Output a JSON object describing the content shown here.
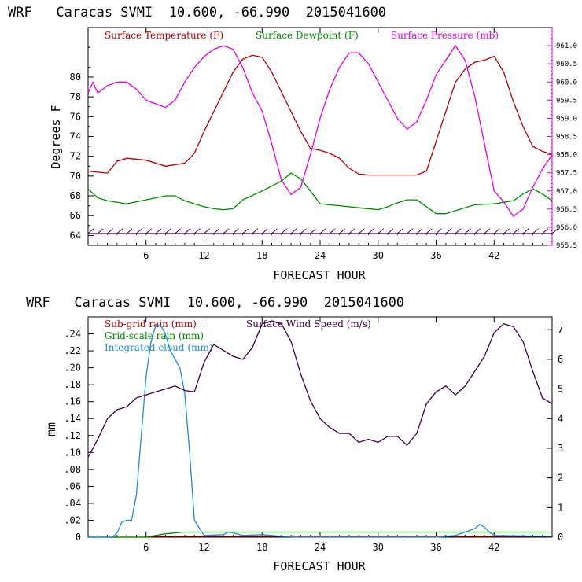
{
  "chart_data": [
    {
      "type": "line",
      "title": "WRF   Caracas SVMI  10.600, -66.990  2015041600",
      "xlabel": "FORECAST HOUR",
      "ylabel": "Degrees F",
      "xlim": [
        0,
        48
      ],
      "ylim": [
        63,
        85
      ],
      "y2lim": [
        955.5,
        961.5
      ],
      "xticks": [
        6,
        12,
        18,
        24,
        30,
        36,
        42
      ],
      "yticks": [
        64,
        66,
        68,
        70,
        72,
        74,
        76,
        78,
        80
      ],
      "y2ticks": [
        "955.5",
        "956.0",
        "956.5",
        "957.0",
        "957.5",
        "958.0",
        "958.5",
        "959.0",
        "959.5",
        "960.0",
        "960.5",
        "961.0"
      ],
      "legend": [
        "Surface Temperature (F)",
        "Surface Dewpoint (F)",
        "Surface Pressure (mb)"
      ],
      "colors": {
        "temperature": "#b40000",
        "dewpoint": "#008c00",
        "pressure": "#e600e6",
        "wind_barbs": "#3c0046",
        "axis": "#000000",
        "right_axis": "#e600e6"
      },
      "series": [
        {
          "name": "Surface Temperature (F)",
          "axis": "left",
          "x": [
            0,
            2,
            3,
            4,
            6,
            8,
            10,
            11,
            12,
            13,
            14,
            15,
            16,
            17,
            18,
            19,
            20,
            21,
            22,
            23,
            24,
            25,
            26,
            27,
            28,
            29,
            30,
            32,
            34,
            35,
            36,
            37,
            38,
            39,
            40,
            41,
            42,
            43,
            44,
            45,
            46,
            47,
            48
          ],
          "y": [
            70.5,
            70.3,
            71.5,
            71.8,
            71.6,
            71,
            71.3,
            72.3,
            74.5,
            76.5,
            78.5,
            80.5,
            81.8,
            82.2,
            82,
            80.5,
            78.5,
            76.5,
            74.5,
            72.8,
            72.6,
            72.3,
            71.8,
            70.8,
            70.2,
            70.1,
            70.1,
            70.1,
            70.1,
            70.5,
            73.5,
            76.5,
            79.5,
            80.8,
            81.5,
            81.7,
            82.1,
            80.5,
            77.5,
            75,
            73,
            72.5,
            72.2
          ]
        },
        {
          "name": "Surface Dewpoint (F)",
          "axis": "left",
          "x": [
            0,
            1,
            2,
            4,
            6,
            8,
            9,
            10,
            11,
            12,
            13,
            14,
            15,
            16,
            18,
            20,
            21,
            22,
            23,
            24,
            26,
            28,
            30,
            31,
            32,
            33,
            34,
            36,
            37,
            38,
            40,
            42,
            44,
            45,
            46,
            47,
            48
          ],
          "y": [
            68.7,
            67.8,
            67.5,
            67.2,
            67.6,
            68,
            68,
            67.5,
            67.2,
            66.9,
            66.7,
            66.6,
            66.7,
            67.6,
            68.5,
            69.5,
            70.3,
            69.7,
            68.5,
            67.2,
            67,
            66.8,
            66.6,
            66.9,
            67.3,
            67.6,
            67.6,
            66.2,
            66.2,
            66.5,
            67.1,
            67.2,
            67.5,
            68.2,
            68.7,
            68.2,
            67.5
          ]
        },
        {
          "name": "Surface Pressure (mb)",
          "axis": "right",
          "x": [
            0,
            0.5,
            1,
            2,
            3,
            4,
            5,
            6,
            7,
            8,
            9,
            10,
            11,
            12,
            13,
            14,
            15,
            16,
            17,
            18,
            19,
            20,
            21,
            22,
            23,
            24,
            25,
            26,
            27,
            28,
            29,
            30,
            31,
            32,
            33,
            34,
            35,
            36,
            37,
            38,
            39,
            40,
            41,
            42,
            43,
            44,
            45,
            46,
            47,
            48
          ],
          "y": [
            959.7,
            960.0,
            959.7,
            959.9,
            960.0,
            960.0,
            959.8,
            959.5,
            959.4,
            959.3,
            959.5,
            960.0,
            960.4,
            960.7,
            960.9,
            961.0,
            960.9,
            960.4,
            959.7,
            959.2,
            958.3,
            957.3,
            956.9,
            957.1,
            958.0,
            959.0,
            959.8,
            960.4,
            960.8,
            960.8,
            960.5,
            960.0,
            959.5,
            959.0,
            958.7,
            958.9,
            959.5,
            960.2,
            960.6,
            961.0,
            960.6,
            959.6,
            958.3,
            957.0,
            956.7,
            956.3,
            956.5,
            957.1,
            957.6,
            958.0
          ]
        },
        {
          "name": "Wind barbs",
          "axis": "left",
          "level": 64.2
        }
      ]
    },
    {
      "type": "line",
      "title": "WRF   Caracas SVMI  10.600, -66.990  2015041600",
      "xlabel": "FORECAST HOUR",
      "ylabel": "mm",
      "xlim": [
        0,
        48
      ],
      "ylim": [
        0,
        0.26
      ],
      "y2lim": [
        0,
        7.43
      ],
      "xticks": [
        6,
        12,
        18,
        24,
        30,
        36,
        42
      ],
      "yticks": [
        ".24",
        ".22",
        ".20",
        ".18",
        ".16",
        ".14",
        ".12",
        ".10",
        ".08",
        ".06",
        ".04",
        ".02",
        "0"
      ],
      "y2ticks": [
        "0",
        "1",
        "2",
        "3",
        "4",
        "5",
        "6",
        "7"
      ],
      "legend": [
        "Sub-grid rain (mm)",
        "Grid-scale rain (mm)",
        "Integrated cloud (mm)",
        "Surface Wind Speed (m/s)"
      ],
      "colors": {
        "subgrid": "#b40000",
        "gridscale": "#008c00",
        "cloud": "#1e8cdc",
        "wind": "#3c0046"
      },
      "series": [
        {
          "name": "Sub-grid rain (mm)",
          "axis": "left",
          "x": [
            0,
            6,
            7,
            48
          ],
          "y": [
            0,
            0,
            0.001,
            0.001
          ]
        },
        {
          "name": "Grid-scale rain (mm)",
          "axis": "left",
          "x": [
            0,
            6,
            8,
            10,
            48
          ],
          "y": [
            0,
            0,
            0.004,
            0.006,
            0.006
          ]
        },
        {
          "name": "Integrated cloud (mm)",
          "axis": "left",
          "x": [
            0,
            2.5,
            3,
            3.5,
            4,
            4.5,
            5,
            5.5,
            6,
            6.5,
            7,
            7.5,
            8,
            8.5,
            9,
            9.5,
            10,
            10.5,
            11,
            12,
            14,
            14.5,
            15,
            16,
            18,
            20,
            22,
            36,
            38,
            40,
            40.5,
            41,
            41.5,
            42,
            48
          ],
          "y": [
            0,
            0,
            0.005,
            0.018,
            0.02,
            0.02,
            0.05,
            0.12,
            0.19,
            0.23,
            0.25,
            0.25,
            0.24,
            0.22,
            0.21,
            0.2,
            0.17,
            0.1,
            0.02,
            0.002,
            0.003,
            0.006,
            0.005,
            0.002,
            0.003,
            0.001,
            0,
            0,
            0.002,
            0.01,
            0.015,
            0.012,
            0.006,
            0.002,
            0.001
          ]
        },
        {
          "name": "Surface Wind Speed (m/s)",
          "axis": "right",
          "x": [
            0,
            1,
            2,
            3,
            4,
            5,
            6,
            7,
            8,
            9,
            10,
            11,
            12,
            13,
            14,
            15,
            16,
            17,
            18,
            19,
            20,
            21,
            22,
            23,
            24,
            25,
            26,
            27,
            28,
            29,
            30,
            31,
            32,
            33,
            34,
            35,
            36,
            37,
            38,
            39,
            40,
            41,
            42,
            43,
            44,
            45,
            46,
            47,
            48
          ],
          "y": [
            2.7,
            3.3,
            4.0,
            4.3,
            4.4,
            4.7,
            4.8,
            4.9,
            5.0,
            5.1,
            4.95,
            4.9,
            5.9,
            6.5,
            6.3,
            6.1,
            6.0,
            6.4,
            7.2,
            7.3,
            7.2,
            6.6,
            5.5,
            4.6,
            4.0,
            3.7,
            3.5,
            3.5,
            3.2,
            3.3,
            3.2,
            3.4,
            3.4,
            3.1,
            3.5,
            4.5,
            4.9,
            5.1,
            4.8,
            5.1,
            5.6,
            6.1,
            6.9,
            7.2,
            7.1,
            6.6,
            5.6,
            4.7,
            4.5
          ]
        }
      ]
    }
  ]
}
